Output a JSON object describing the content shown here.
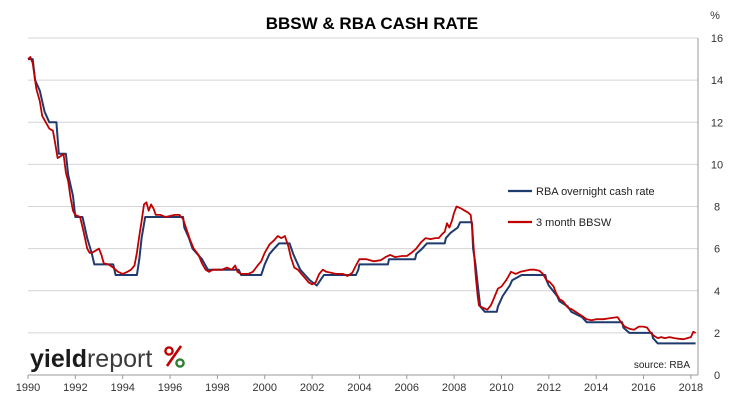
{
  "chart_data": {
    "type": "line",
    "title": "BBSW & RBA CASH RATE",
    "y_unit": "%",
    "xlim": [
      1990,
      2018.3
    ],
    "ylim": [
      0,
      16
    ],
    "y_ticks": [
      0,
      2,
      4,
      6,
      8,
      10,
      12,
      14,
      16
    ],
    "x_ticks": [
      1990,
      1992,
      1994,
      1996,
      1998,
      2000,
      2002,
      2004,
      2006,
      2008,
      2010,
      2012,
      2014,
      2016,
      2018
    ],
    "grid": "horizontal",
    "legend_position": "right-middle",
    "source": "source: RBA",
    "series": [
      {
        "name": "RBA overnight cash rate",
        "color": "#1f3a6e",
        "points": [
          [
            1990.0,
            15.0
          ],
          [
            1990.2,
            15.0
          ],
          [
            1990.3,
            14.0
          ],
          [
            1990.5,
            13.5
          ],
          [
            1990.7,
            12.5
          ],
          [
            1990.9,
            12.0
          ],
          [
            1991.2,
            12.0
          ],
          [
            1991.3,
            10.5
          ],
          [
            1991.6,
            10.5
          ],
          [
            1991.7,
            9.5
          ],
          [
            1991.9,
            8.5
          ],
          [
            1992.0,
            7.5
          ],
          [
            1992.3,
            7.5
          ],
          [
            1992.5,
            6.5
          ],
          [
            1992.7,
            5.75
          ],
          [
            1992.8,
            5.25
          ],
          [
            1993.6,
            5.25
          ],
          [
            1993.7,
            4.75
          ],
          [
            1994.6,
            4.75
          ],
          [
            1994.7,
            5.5
          ],
          [
            1994.8,
            6.5
          ],
          [
            1994.95,
            7.5
          ],
          [
            1996.55,
            7.5
          ],
          [
            1996.6,
            7.0
          ],
          [
            1996.8,
            6.5
          ],
          [
            1996.95,
            6.0
          ],
          [
            1997.35,
            5.5
          ],
          [
            1997.6,
            5.0
          ],
          [
            1998.9,
            5.0
          ],
          [
            1999.0,
            4.75
          ],
          [
            1999.85,
            4.75
          ],
          [
            2000.0,
            5.25
          ],
          [
            2000.2,
            5.75
          ],
          [
            2000.4,
            6.0
          ],
          [
            2000.6,
            6.25
          ],
          [
            2001.05,
            6.25
          ],
          [
            2001.2,
            5.75
          ],
          [
            2001.3,
            5.5
          ],
          [
            2001.5,
            5.0
          ],
          [
            2001.7,
            4.75
          ],
          [
            2001.9,
            4.5
          ],
          [
            2002.2,
            4.25
          ],
          [
            2002.35,
            4.5
          ],
          [
            2002.5,
            4.75
          ],
          [
            2003.85,
            4.75
          ],
          [
            2003.95,
            5.0
          ],
          [
            2004.0,
            5.25
          ],
          [
            2005.2,
            5.25
          ],
          [
            2005.25,
            5.5
          ],
          [
            2006.35,
            5.5
          ],
          [
            2006.4,
            5.75
          ],
          [
            2006.65,
            6.0
          ],
          [
            2006.85,
            6.25
          ],
          [
            2007.6,
            6.25
          ],
          [
            2007.65,
            6.5
          ],
          [
            2007.85,
            6.75
          ],
          [
            2008.15,
            7.0
          ],
          [
            2008.25,
            7.25
          ],
          [
            2008.75,
            7.25
          ],
          [
            2008.8,
            6.0
          ],
          [
            2008.9,
            5.25
          ],
          [
            2009.0,
            4.25
          ],
          [
            2009.1,
            3.25
          ],
          [
            2009.3,
            3.0
          ],
          [
            2009.8,
            3.0
          ],
          [
            2009.85,
            3.25
          ],
          [
            2009.95,
            3.5
          ],
          [
            2010.05,
            3.75
          ],
          [
            2010.2,
            4.0
          ],
          [
            2010.35,
            4.25
          ],
          [
            2010.45,
            4.5
          ],
          [
            2010.85,
            4.75
          ],
          [
            2011.85,
            4.75
          ],
          [
            2011.9,
            4.5
          ],
          [
            2012.0,
            4.25
          ],
          [
            2012.35,
            3.75
          ],
          [
            2012.45,
            3.5
          ],
          [
            2012.8,
            3.25
          ],
          [
            2012.95,
            3.0
          ],
          [
            2013.4,
            2.75
          ],
          [
            2013.6,
            2.5
          ],
          [
            2015.1,
            2.5
          ],
          [
            2015.15,
            2.25
          ],
          [
            2015.4,
            2.0
          ],
          [
            2016.35,
            2.0
          ],
          [
            2016.4,
            1.75
          ],
          [
            2016.6,
            1.5
          ],
          [
            2018.2,
            1.5
          ]
        ]
      },
      {
        "name": "3 month BBSW",
        "color": "#c00000",
        "points": [
          [
            1990.0,
            15.0
          ],
          [
            1990.1,
            15.1
          ],
          [
            1990.2,
            14.8
          ],
          [
            1990.35,
            13.6
          ],
          [
            1990.5,
            13.0
          ],
          [
            1990.6,
            12.3
          ],
          [
            1990.75,
            12.0
          ],
          [
            1990.9,
            11.7
          ],
          [
            1991.05,
            11.6
          ],
          [
            1991.15,
            11.0
          ],
          [
            1991.25,
            10.3
          ],
          [
            1991.4,
            10.4
          ],
          [
            1991.5,
            10.5
          ],
          [
            1991.6,
            9.6
          ],
          [
            1991.7,
            9.2
          ],
          [
            1991.8,
            8.4
          ],
          [
            1991.9,
            7.8
          ],
          [
            1992.0,
            7.6
          ],
          [
            1992.2,
            7.5
          ],
          [
            1992.35,
            6.8
          ],
          [
            1992.5,
            6.0
          ],
          [
            1992.6,
            5.8
          ],
          [
            1992.7,
            5.8
          ],
          [
            1992.85,
            5.9
          ],
          [
            1993.0,
            6.0
          ],
          [
            1993.1,
            5.7
          ],
          [
            1993.2,
            5.3
          ],
          [
            1993.4,
            5.25
          ],
          [
            1993.6,
            5.1
          ],
          [
            1993.8,
            4.9
          ],
          [
            1994.0,
            4.8
          ],
          [
            1994.2,
            4.9
          ],
          [
            1994.35,
            5.0
          ],
          [
            1994.5,
            5.2
          ],
          [
            1994.6,
            5.8
          ],
          [
            1994.7,
            6.6
          ],
          [
            1994.8,
            7.3
          ],
          [
            1994.9,
            8.1
          ],
          [
            1995.0,
            8.2
          ],
          [
            1995.1,
            7.8
          ],
          [
            1995.2,
            8.1
          ],
          [
            1995.3,
            7.9
          ],
          [
            1995.4,
            7.6
          ],
          [
            1995.6,
            7.6
          ],
          [
            1995.8,
            7.5
          ],
          [
            1996.0,
            7.55
          ],
          [
            1996.2,
            7.6
          ],
          [
            1996.4,
            7.6
          ],
          [
            1996.55,
            7.4
          ],
          [
            1996.7,
            6.9
          ],
          [
            1996.85,
            6.4
          ],
          [
            1997.0,
            6.0
          ],
          [
            1997.2,
            5.7
          ],
          [
            1997.35,
            5.3
          ],
          [
            1997.5,
            5.0
          ],
          [
            1997.65,
            4.9
          ],
          [
            1997.8,
            5.0
          ],
          [
            1998.0,
            5.0
          ],
          [
            1998.2,
            5.0
          ],
          [
            1998.4,
            5.1
          ],
          [
            1998.6,
            5.0
          ],
          [
            1998.75,
            5.2
          ],
          [
            1998.85,
            4.9
          ],
          [
            1999.0,
            4.8
          ],
          [
            1999.3,
            4.8
          ],
          [
            1999.5,
            4.9
          ],
          [
            1999.7,
            5.2
          ],
          [
            1999.85,
            5.4
          ],
          [
            2000.0,
            5.8
          ],
          [
            2000.2,
            6.2
          ],
          [
            2000.4,
            6.4
          ],
          [
            2000.55,
            6.6
          ],
          [
            2000.7,
            6.5
          ],
          [
            2000.85,
            6.6
          ],
          [
            2001.0,
            6.1
          ],
          [
            2001.1,
            5.6
          ],
          [
            2001.25,
            5.1
          ],
          [
            2001.4,
            5.0
          ],
          [
            2001.55,
            4.8
          ],
          [
            2001.7,
            4.6
          ],
          [
            2001.85,
            4.4
          ],
          [
            2002.0,
            4.3
          ],
          [
            2002.15,
            4.4
          ],
          [
            2002.3,
            4.8
          ],
          [
            2002.45,
            5.0
          ],
          [
            2002.6,
            4.9
          ],
          [
            2002.8,
            4.85
          ],
          [
            2003.0,
            4.8
          ],
          [
            2003.3,
            4.8
          ],
          [
            2003.5,
            4.7
          ],
          [
            2003.7,
            4.85
          ],
          [
            2003.85,
            5.2
          ],
          [
            2004.0,
            5.5
          ],
          [
            2004.3,
            5.5
          ],
          [
            2004.6,
            5.4
          ],
          [
            2004.9,
            5.45
          ],
          [
            2005.1,
            5.6
          ],
          [
            2005.3,
            5.7
          ],
          [
            2005.5,
            5.6
          ],
          [
            2005.8,
            5.65
          ],
          [
            2006.0,
            5.65
          ],
          [
            2006.2,
            5.8
          ],
          [
            2006.4,
            6.0
          ],
          [
            2006.6,
            6.3
          ],
          [
            2006.8,
            6.5
          ],
          [
            2007.0,
            6.45
          ],
          [
            2007.2,
            6.5
          ],
          [
            2007.35,
            6.5
          ],
          [
            2007.5,
            6.7
          ],
          [
            2007.6,
            6.8
          ],
          [
            2007.7,
            7.2
          ],
          [
            2007.8,
            7.0
          ],
          [
            2007.9,
            7.3
          ],
          [
            2008.0,
            7.7
          ],
          [
            2008.1,
            8.0
          ],
          [
            2008.3,
            7.9
          ],
          [
            2008.45,
            7.8
          ],
          [
            2008.6,
            7.7
          ],
          [
            2008.7,
            7.6
          ],
          [
            2008.78,
            6.8
          ],
          [
            2008.85,
            5.6
          ],
          [
            2008.92,
            4.6
          ],
          [
            2009.0,
            3.7
          ],
          [
            2009.05,
            3.3
          ],
          [
            2009.2,
            3.2
          ],
          [
            2009.4,
            3.1
          ],
          [
            2009.55,
            3.3
          ],
          [
            2009.7,
            3.7
          ],
          [
            2009.85,
            4.1
          ],
          [
            2010.0,
            4.2
          ],
          [
            2010.2,
            4.5
          ],
          [
            2010.4,
            4.9
          ],
          [
            2010.6,
            4.8
          ],
          [
            2010.8,
            4.9
          ],
          [
            2011.0,
            4.95
          ],
          [
            2011.2,
            5.0
          ],
          [
            2011.4,
            5.0
          ],
          [
            2011.6,
            4.95
          ],
          [
            2011.75,
            4.8
          ],
          [
            2011.9,
            4.5
          ],
          [
            2012.05,
            4.4
          ],
          [
            2012.2,
            4.2
          ],
          [
            2012.3,
            3.9
          ],
          [
            2012.45,
            3.6
          ],
          [
            2012.6,
            3.5
          ],
          [
            2012.8,
            3.2
          ],
          [
            2013.0,
            3.1
          ],
          [
            2013.2,
            2.95
          ],
          [
            2013.4,
            2.8
          ],
          [
            2013.6,
            2.65
          ],
          [
            2013.8,
            2.6
          ],
          [
            2014.0,
            2.65
          ],
          [
            2014.3,
            2.65
          ],
          [
            2014.6,
            2.7
          ],
          [
            2014.9,
            2.75
          ],
          [
            2015.05,
            2.5
          ],
          [
            2015.2,
            2.3
          ],
          [
            2015.4,
            2.2
          ],
          [
            2015.6,
            2.15
          ],
          [
            2015.8,
            2.3
          ],
          [
            2016.0,
            2.3
          ],
          [
            2016.15,
            2.25
          ],
          [
            2016.3,
            2.0
          ],
          [
            2016.45,
            1.85
          ],
          [
            2016.6,
            1.75
          ],
          [
            2016.75,
            1.8
          ],
          [
            2016.9,
            1.75
          ],
          [
            2017.1,
            1.8
          ],
          [
            2017.3,
            1.75
          ],
          [
            2017.5,
            1.72
          ],
          [
            2017.7,
            1.7
          ],
          [
            2017.85,
            1.75
          ],
          [
            2018.0,
            1.8
          ],
          [
            2018.1,
            2.05
          ],
          [
            2018.2,
            2.0
          ]
        ]
      }
    ]
  },
  "logo": {
    "word_dark": "yield",
    "word_light": "report",
    "symbol": "%",
    "symbol_colors": [
      "#c00000",
      "#2e7d32"
    ]
  }
}
